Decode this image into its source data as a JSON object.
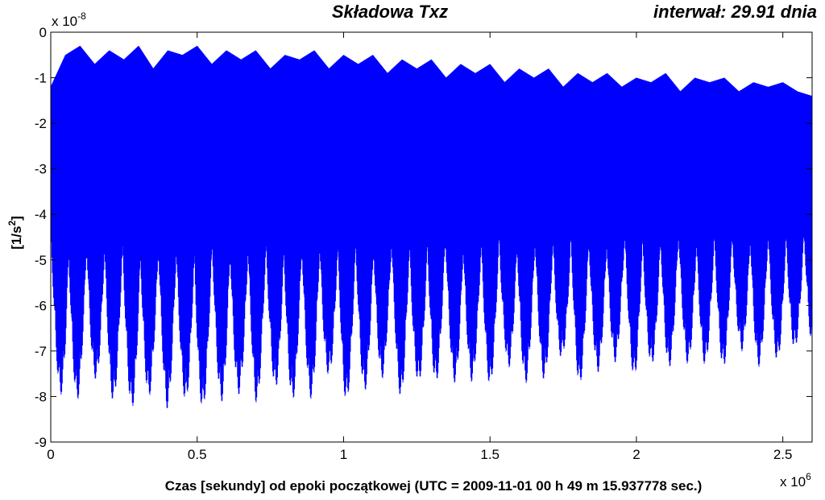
{
  "chart_data": {
    "type": "line",
    "title": "Składowa Txz",
    "interval_label": "interwał: 29.91 dnia",
    "xlabel": "Czas [sekundy] od epoki początkowej (UTC = 2009-11-01 00 h 49 m 15.937778 sec.)",
    "ylabel_base": "[1/s",
    "ylabel_sup": "2",
    "ylabel_end": "]",
    "x_multiplier_base": "x 10",
    "x_multiplier_exp": "6",
    "y_multiplier_base": "x 10",
    "y_multiplier_exp": "-8",
    "xlim": [
      0,
      2.6
    ],
    "ylim": [
      -9,
      0
    ],
    "x_ticks": [
      0,
      0.5,
      1,
      1.5,
      2,
      2.5
    ],
    "x_tick_labels": [
      "0",
      "0.5",
      "1",
      "1.5",
      "2",
      "2.5"
    ],
    "y_ticks": [
      0,
      -1,
      -2,
      -3,
      -4,
      -5,
      -6,
      -7,
      -8,
      -9
    ],
    "y_tick_labels": [
      "0",
      "-1",
      "-2",
      "-3",
      "-4",
      "-5",
      "-6",
      "-7",
      "-8",
      "-9"
    ],
    "grid": false,
    "series": [
      {
        "color": "#0000ff",
        "envelope": {
          "x": [
            0,
            0.05,
            0.1,
            0.15,
            0.2,
            0.25,
            0.3,
            0.35,
            0.4,
            0.45,
            0.5,
            0.55,
            0.6,
            0.65,
            0.7,
            0.75,
            0.8,
            0.85,
            0.9,
            0.95,
            1.0,
            1.05,
            1.1,
            1.15,
            1.2,
            1.25,
            1.3,
            1.35,
            1.4,
            1.45,
            1.5,
            1.55,
            1.6,
            1.65,
            1.7,
            1.75,
            1.8,
            1.85,
            1.9,
            1.95,
            2.0,
            2.05,
            2.1,
            2.15,
            2.2,
            2.25,
            2.3,
            2.35,
            2.4,
            2.45,
            2.5,
            2.55,
            2.6
          ],
          "y_max": [
            -1.2,
            -0.5,
            -0.3,
            -0.7,
            -0.4,
            -0.6,
            -0.3,
            -0.8,
            -0.4,
            -0.5,
            -0.3,
            -0.7,
            -0.4,
            -0.6,
            -0.4,
            -0.8,
            -0.5,
            -0.6,
            -0.4,
            -0.8,
            -0.5,
            -0.7,
            -0.5,
            -0.9,
            -0.6,
            -0.8,
            -0.6,
            -1.0,
            -0.7,
            -0.9,
            -0.7,
            -1.1,
            -0.8,
            -1.0,
            -0.8,
            -1.2,
            -0.9,
            -1.1,
            -0.9,
            -1.2,
            -1.0,
            -1.1,
            -0.9,
            -1.3,
            -1.0,
            -1.1,
            -1.0,
            -1.3,
            -1.1,
            -1.2,
            -1.1,
            -1.3,
            -1.4
          ],
          "y_min": [
            -7.0,
            -8.5,
            -8.0,
            -7.6,
            -8.2,
            -7.9,
            -8.6,
            -7.8,
            -8.3,
            -8.0,
            -8.6,
            -7.8,
            -8.3,
            -7.9,
            -8.2,
            -7.6,
            -8.3,
            -7.9,
            -8.1,
            -7.5,
            -8.2,
            -7.8,
            -8.0,
            -7.4,
            -8.1,
            -7.7,
            -7.9,
            -7.3,
            -8.0,
            -7.6,
            -7.8,
            -7.2,
            -7.9,
            -7.5,
            -7.7,
            -7.1,
            -7.8,
            -7.4,
            -7.6,
            -7.0,
            -7.7,
            -7.3,
            -7.5,
            -7.0,
            -7.6,
            -7.2,
            -7.4,
            -6.9,
            -7.5,
            -7.1,
            -7.3,
            -6.9,
            -7.0
          ]
        },
        "mean_level": -3.2
      }
    ]
  }
}
